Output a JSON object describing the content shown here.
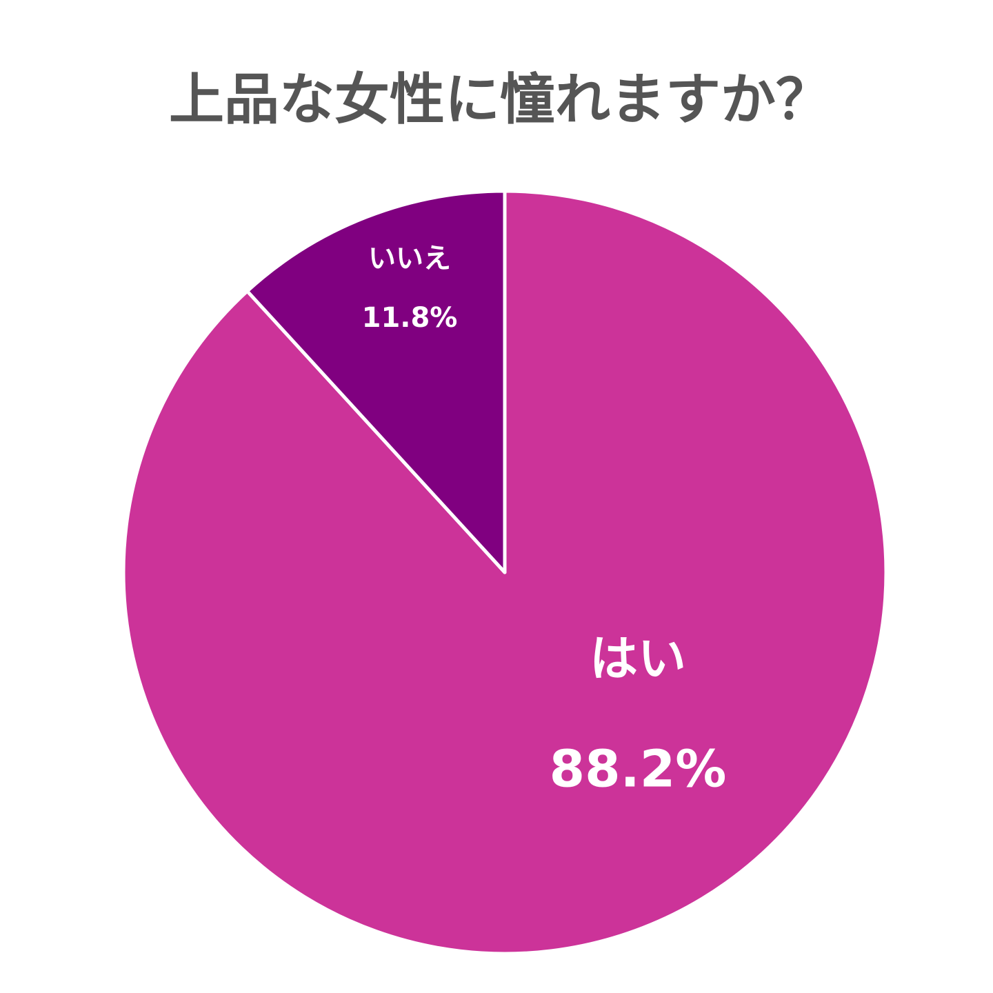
{
  "chart_data": {
    "type": "pie",
    "title": "上品な女性に憧れますか？",
    "categories": [
      "はい",
      "いいえ"
    ],
    "values": [
      88.2,
      11.8
    ],
    "value_labels": [
      "88.2%",
      "11.8%"
    ],
    "colors": [
      "#cc3399",
      "#800080"
    ]
  }
}
